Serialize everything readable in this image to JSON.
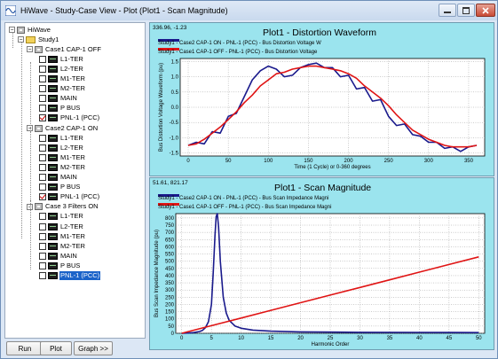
{
  "window": {
    "title": "HiWave - Study-Case View - Plot (Plot1 - Scan Magnitude)"
  },
  "tree": {
    "root": "HiWave",
    "study": "Study1",
    "cases": [
      {
        "name": "Case1 CAP-1 OFF",
        "items": [
          {
            "label": "L1-TER",
            "checked": false
          },
          {
            "label": "L2-TER",
            "checked": false
          },
          {
            "label": "M1-TER",
            "checked": false
          },
          {
            "label": "M2-TER",
            "checked": false
          },
          {
            "label": "MAIN",
            "checked": false
          },
          {
            "label": "P BUS",
            "checked": false
          },
          {
            "label": "PNL-1 (PCC)",
            "checked": true
          }
        ]
      },
      {
        "name": "Case2 CAP-1 ON",
        "items": [
          {
            "label": "L1-TER",
            "checked": false
          },
          {
            "label": "L2-TER",
            "checked": false
          },
          {
            "label": "M1-TER",
            "checked": false
          },
          {
            "label": "M2-TER",
            "checked": false
          },
          {
            "label": "MAIN",
            "checked": false
          },
          {
            "label": "P BUS",
            "checked": false
          },
          {
            "label": "PNL-1 (PCC)",
            "checked": true
          }
        ]
      },
      {
        "name": "Case 3 Filters ON",
        "items": [
          {
            "label": "L1-TER",
            "checked": false
          },
          {
            "label": "L2-TER",
            "checked": false
          },
          {
            "label": "M1-TER",
            "checked": false
          },
          {
            "label": "M2-TER",
            "checked": false
          },
          {
            "label": "MAIN",
            "checked": false
          },
          {
            "label": "P BUS",
            "checked": false
          },
          {
            "label": "PNL-1 (PCC)",
            "checked": false,
            "selected": true
          }
        ]
      }
    ]
  },
  "buttons": {
    "run": "Run",
    "plot": "Plot",
    "graph": "Graph >>"
  },
  "colors": {
    "panel_bg": "#9be4ee",
    "series_blue": "#1a1a8c",
    "series_red": "#e01414",
    "selection": "#1b63c9"
  },
  "plot1": {
    "readout": "336.96, -1.23",
    "title": "Plot1 - Distortion Waveform",
    "legend": [
      "Study1 - Case2 CAP-1 ON - PNL-1 (PCC) - Bus Distortion Voltage W",
      "Study1 - Case1 CAP-1 OFF - PNL-1 (PCC) - Bus Distortion Voltage"
    ]
  },
  "plot2": {
    "readout": "51.61, 821.17",
    "title": "Plot1 - Scan Magnitude",
    "legend": [
      "Study1 - Case2 CAP-1 ON - PNL-1 (PCC) - Bus Scan Impedance Magni",
      "Study1 - Case1 CAP-1 OFF - PNL-1 (PCC) - Bus Scan Impedance Magni"
    ]
  },
  "chart_data": [
    {
      "type": "line",
      "title": "Plot1 - Distortion Waveform",
      "xlabel": "Time (1 Cycle) or 0-360 degrees",
      "ylabel": "Bus Distortion Voltage Waveform (pu)",
      "xlim": [
        -10,
        370
      ],
      "ylim": [
        -1.6,
        1.6
      ],
      "xticks": [
        0,
        50,
        100,
        150,
        200,
        250,
        300,
        350
      ],
      "yticks": [
        1.5,
        1.0,
        0.5,
        0.0,
        -0.5,
        -1.0,
        -1.5
      ],
      "ytick_labels": [
        "1.5",
        "1.0",
        "0.5",
        "0.0",
        "-0.5",
        "-1.0",
        "-1.5"
      ],
      "grid": true,
      "series": [
        {
          "name": "Study1 - Case2 CAP-1 ON - PNL-1 (PCC) - Bus Distortion Voltage W",
          "color": "#1a1a8c",
          "x": [
            0,
            10,
            20,
            30,
            40,
            50,
            60,
            70,
            80,
            90,
            100,
            110,
            120,
            130,
            140,
            150,
            160,
            170,
            180,
            190,
            200,
            210,
            220,
            230,
            240,
            250,
            260,
            270,
            280,
            290,
            300,
            310,
            320,
            330,
            340,
            350,
            360
          ],
          "y": [
            -1.25,
            -1.15,
            -1.2,
            -0.8,
            -0.85,
            -0.3,
            -0.2,
            0.35,
            0.9,
            1.2,
            1.35,
            1.25,
            1.0,
            1.05,
            1.3,
            1.4,
            1.45,
            1.3,
            1.3,
            1.0,
            1.05,
            0.6,
            0.65,
            0.2,
            0.25,
            -0.3,
            -0.6,
            -0.55,
            -0.9,
            -0.95,
            -1.15,
            -1.15,
            -1.35,
            -1.3,
            -1.45,
            -1.3,
            -1.25
          ]
        },
        {
          "name": "Study1 - Case1 CAP-1 OFF - PNL-1 (PCC) - Bus Distortion Voltage",
          "color": "#e01414",
          "x": [
            0,
            10,
            20,
            30,
            40,
            50,
            60,
            70,
            80,
            90,
            100,
            110,
            120,
            130,
            140,
            150,
            160,
            170,
            180,
            190,
            200,
            210,
            220,
            230,
            240,
            250,
            260,
            270,
            280,
            290,
            300,
            310,
            320,
            330,
            340,
            350,
            360
          ],
          "y": [
            -1.25,
            -1.2,
            -1.05,
            -0.85,
            -0.65,
            -0.4,
            -0.15,
            0.15,
            0.4,
            0.7,
            0.9,
            1.1,
            1.15,
            1.25,
            1.3,
            1.35,
            1.35,
            1.3,
            1.25,
            1.2,
            1.1,
            0.95,
            0.7,
            0.5,
            0.3,
            0.05,
            -0.25,
            -0.5,
            -0.75,
            -0.9,
            -1.05,
            -1.15,
            -1.25,
            -1.3,
            -1.3,
            -1.3,
            -1.25
          ]
        }
      ]
    },
    {
      "type": "line",
      "title": "Plot1 - Scan Magnitude",
      "xlabel": "Harmonic Order",
      "ylabel": "Bus Scan Impedance Magnitude (pu)",
      "xlim": [
        -1,
        51
      ],
      "ylim": [
        0,
        830
      ],
      "xticks": [
        0,
        5,
        10,
        15,
        20,
        25,
        30,
        35,
        40,
        45,
        50
      ],
      "yticks": [
        0,
        50,
        100,
        150,
        200,
        250,
        300,
        350,
        400,
        450,
        500,
        550,
        600,
        650,
        700,
        750,
        800
      ],
      "grid": true,
      "series": [
        {
          "name": "Study1 - Case2 CAP-1 ON - PNL-1 (PCC) - Bus Scan Impedance Magni",
          "color": "#1a1a8c",
          "x": [
            0,
            1,
            2,
            3,
            3.5,
            4,
            4.5,
            5,
            5.3,
            5.6,
            5.8,
            6.0,
            6.2,
            6.5,
            7,
            7.5,
            8,
            9,
            10,
            12,
            15,
            20,
            30,
            40,
            50
          ],
          "y": [
            0,
            2,
            5,
            12,
            20,
            40,
            80,
            200,
            420,
            680,
            810,
            830,
            740,
            500,
            250,
            140,
            90,
            50,
            35,
            22,
            15,
            10,
            7,
            6,
            5
          ]
        },
        {
          "name": "Study1 - Case1 CAP-1 OFF - PNL-1 (PCC) - Bus Scan Impedance Magni",
          "color": "#e01414",
          "x": [
            0,
            5,
            10,
            15,
            20,
            25,
            30,
            35,
            40,
            45,
            50
          ],
          "y": [
            0,
            53,
            106,
            159,
            212,
            265,
            318,
            371,
            424,
            477,
            530
          ]
        }
      ]
    }
  ]
}
